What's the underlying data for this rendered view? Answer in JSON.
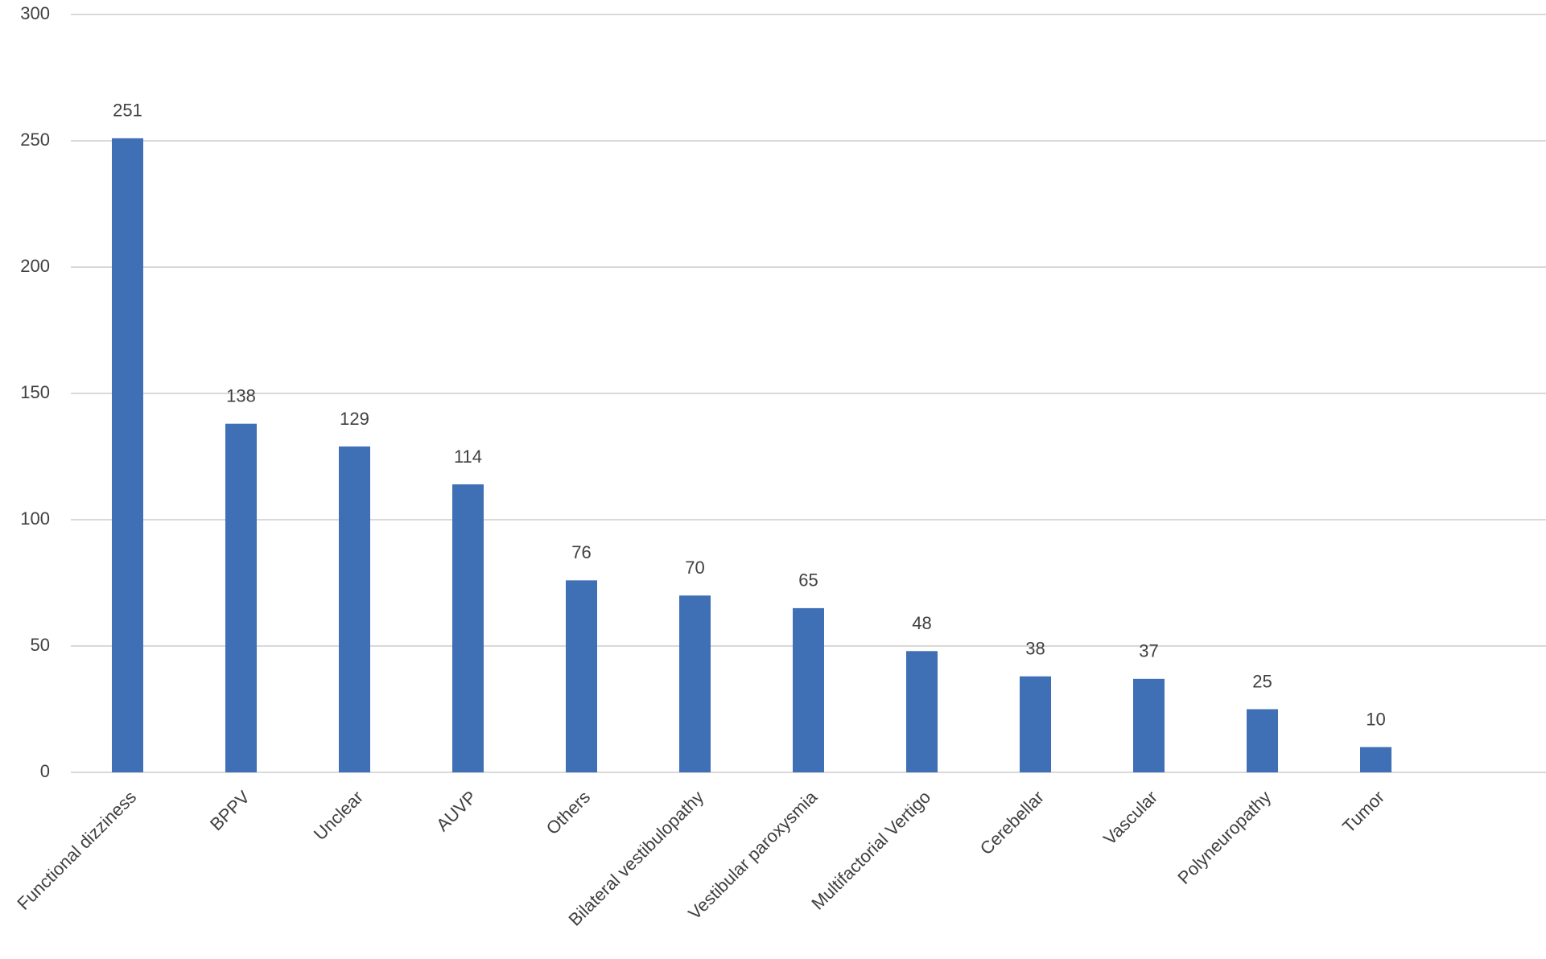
{
  "chart_data": {
    "type": "bar",
    "categories": [
      "Functional dizziness",
      "BPPV",
      "Unclear",
      "AUVP",
      "Others",
      "Bilateral vestibulopathy",
      "Vestibular paroxysmia",
      "Multifactorial Vertigo",
      "Cerebellar",
      "Vascular",
      "Polyneuropathy",
      "Tumor",
      null
    ],
    "values": [
      251,
      138,
      129,
      114,
      76,
      70,
      65,
      48,
      38,
      37,
      25,
      10,
      null
    ],
    "color": "#3f6fb5",
    "ylim": [
      0,
      300
    ],
    "yticks": [
      0,
      50,
      100,
      150,
      200,
      250,
      300
    ],
    "grid": true,
    "data_labels": true
  }
}
